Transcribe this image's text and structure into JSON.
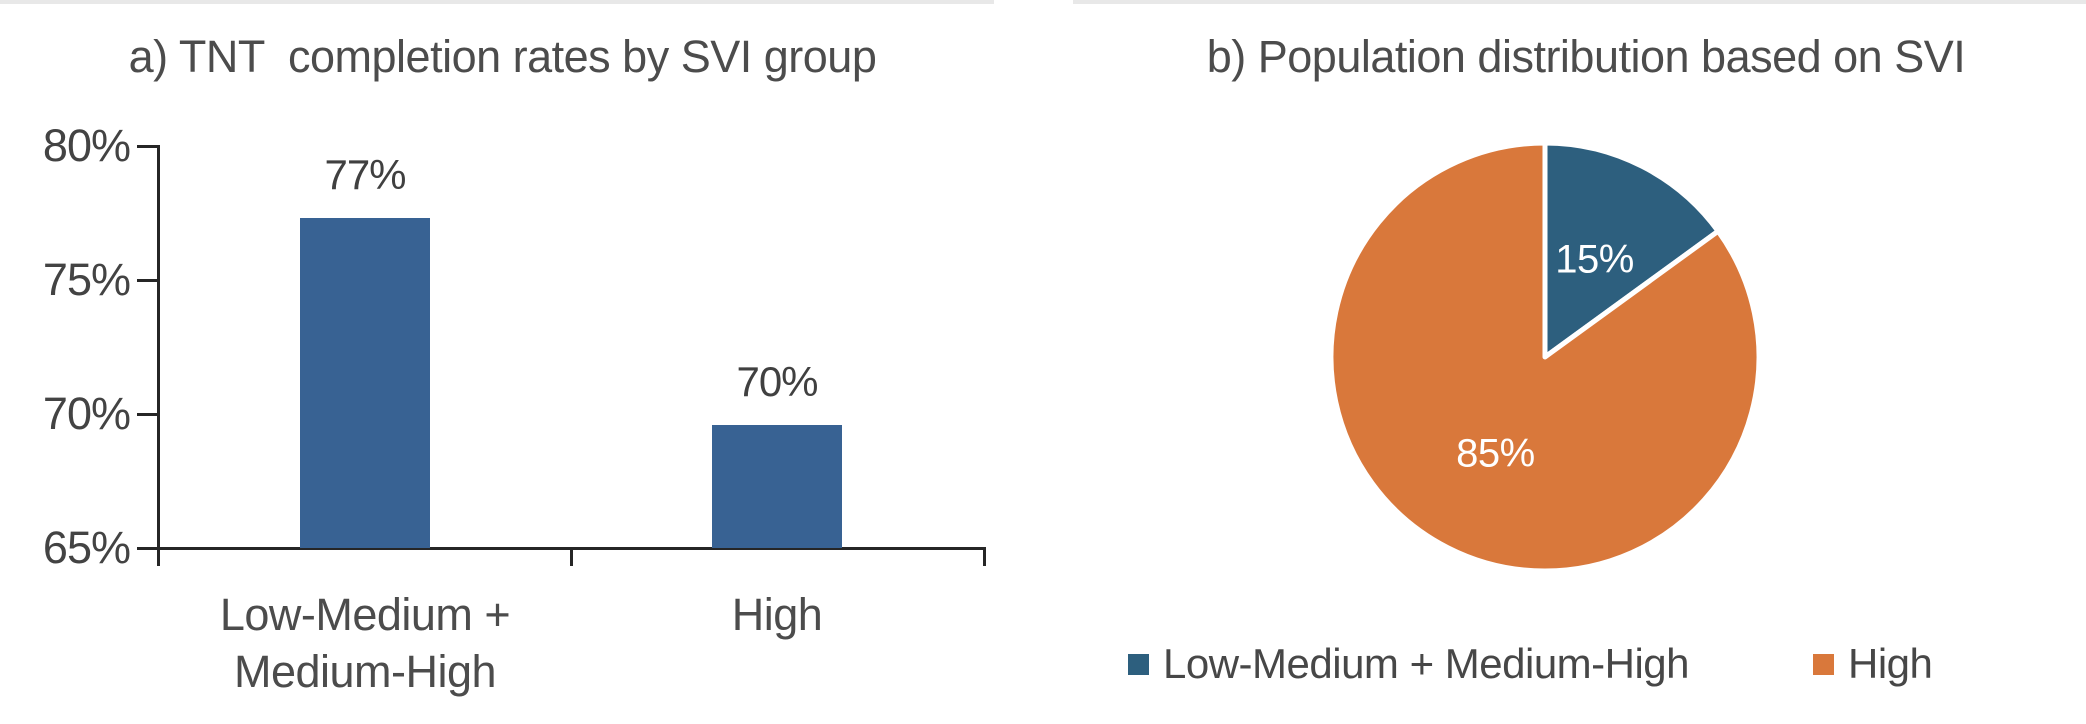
{
  "accent_colors": {
    "bar_blue": "#386293",
    "pie_blue": "#2d5f7e",
    "pie_orange": "#d9783b",
    "axis_color": "#262626",
    "text_gray": "#4c4c4c",
    "top_strip_gray": "#e8e8e8"
  },
  "chart_data": [
    {
      "type": "bar",
      "title": "a) TNT  completion rates by SVI group",
      "categories": [
        "Low-Medium + Medium-High",
        "High"
      ],
      "category_display": [
        "Low-Medium +\nMedium-High",
        "High"
      ],
      "values": [
        77.3,
        69.6
      ],
      "value_labels": [
        "77%",
        "70%"
      ],
      "ytick_labels": [
        "80%",
        "75%",
        "70%",
        "65%"
      ],
      "ytick_values": [
        80,
        75,
        70,
        65
      ],
      "ylim": [
        65,
        80
      ],
      "xlabel": "",
      "ylabel": "",
      "grid": "off",
      "bar_color": "#386293"
    },
    {
      "type": "pie",
      "title": "b) Population distribution based on SVI",
      "slices": [
        {
          "label": "Low-Medium + Medium-High",
          "value": 15,
          "display": "15%",
          "color": "#2d5f7e"
        },
        {
          "label": "High",
          "value": 85,
          "display": "85%",
          "color": "#d9783b"
        }
      ],
      "start_angle_deg": 0,
      "direction": "clockwise",
      "legend_position": "bottom"
    }
  ]
}
